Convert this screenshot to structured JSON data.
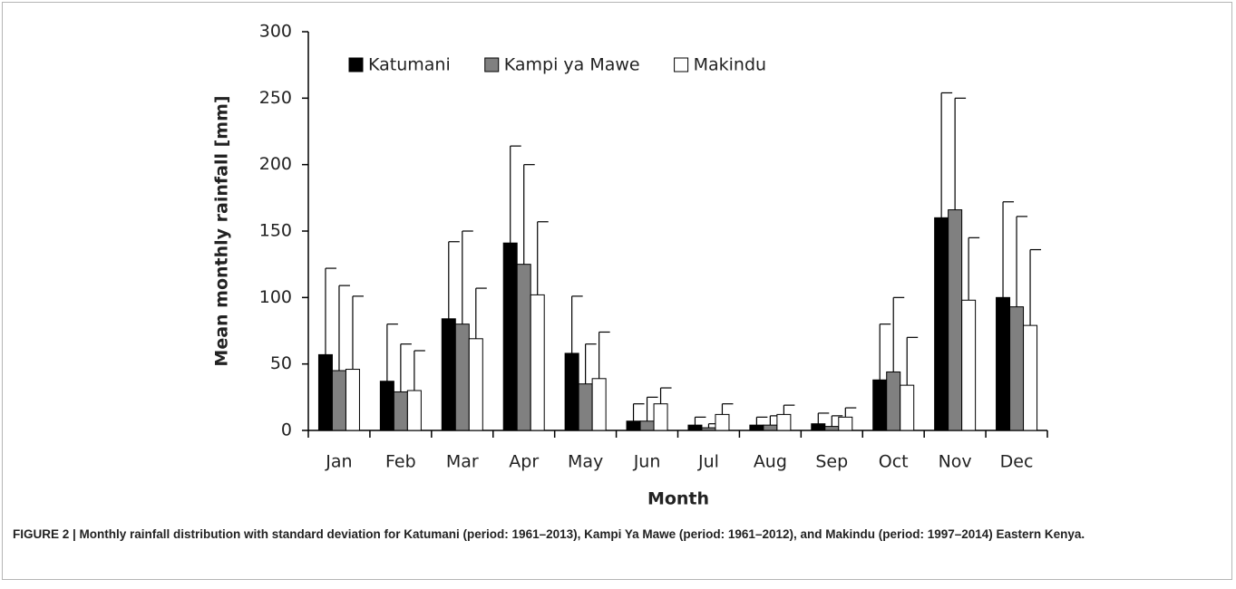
{
  "chart_data": {
    "type": "bar",
    "ylabel": "Mean monthly rainfall [mm]",
    "xlabel": "Month",
    "caption": "FIGURE 2 | Monthly rainfall distribution with standard deviation for Katumani (period: 1961–2013), Kampi Ya Mawe (period: 1961–2012), and Makindu (period: 1997–2014) Eastern Kenya.",
    "categories": [
      "Jan",
      "Feb",
      "Mar",
      "Apr",
      "May",
      "Jun",
      "Jul",
      "Aug",
      "Sep",
      "Oct",
      "Nov",
      "Dec"
    ],
    "series": [
      {
        "name": "Katumani",
        "color": "#000000",
        "values": [
          57,
          37,
          84,
          141,
          58,
          7,
          4,
          4,
          5,
          38,
          160,
          100
        ],
        "errors": [
          65,
          43,
          58,
          73,
          43,
          13,
          6,
          6,
          8,
          42,
          94,
          72
        ]
      },
      {
        "name": "Kampi ya Mawe",
        "color": "#808080",
        "values": [
          45,
          29,
          80,
          125,
          35,
          7,
          2,
          4,
          3,
          44,
          166,
          93
        ],
        "errors": [
          64,
          36,
          70,
          75,
          30,
          18,
          3,
          7,
          8,
          56,
          84,
          68
        ]
      },
      {
        "name": "Makindu",
        "color": "#ffffff",
        "values": [
          46,
          30,
          69,
          102,
          39,
          20,
          12,
          12,
          10,
          34,
          98,
          79
        ],
        "errors": [
          55,
          30,
          38,
          55,
          35,
          12,
          8,
          7,
          7,
          36,
          47,
          57
        ]
      }
    ],
    "ylim": [
      0,
      300
    ],
    "yticks": [
      0,
      50,
      100,
      150,
      200,
      250,
      300
    ],
    "grid": false,
    "legend": "top"
  }
}
